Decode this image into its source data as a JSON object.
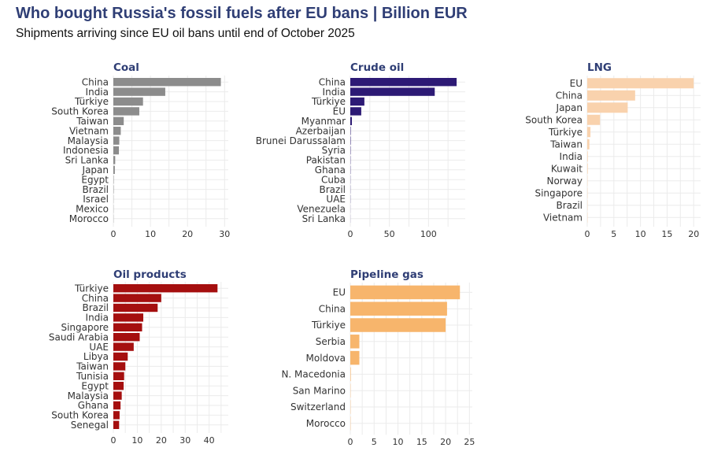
{
  "header": {
    "title": "Who bought Russia's fossil fuels after EU bans | Billion EUR",
    "subtitle": "Shipments arriving since EU oil bans until end of October 2025"
  },
  "colors": {
    "title": "#2f3e75",
    "grid": "#ebebeb",
    "text": "#333333"
  },
  "chart_data": [
    {
      "type": "bar",
      "orientation": "horizontal",
      "title": "Coal",
      "color": "#8c8c8c",
      "categories": [
        "China",
        "India",
        "Türkiye",
        "South Korea",
        "Taiwan",
        "Vietnam",
        "Malaysia",
        "Indonesia",
        "Sri Lanka",
        "Japan",
        "Egypt",
        "Brazil",
        "Israel",
        "Mexico",
        "Morocco"
      ],
      "values": [
        29,
        14,
        8,
        7,
        2.8,
        2.0,
        1.6,
        1.5,
        0.5,
        0.4,
        0.1,
        0.1,
        0.05,
        0.05,
        0.05
      ],
      "xlim": [
        0,
        31
      ],
      "ticks": [
        0,
        10,
        20,
        30
      ]
    },
    {
      "type": "bar",
      "orientation": "horizontal",
      "title": "Crude oil",
      "color": "#2d1a75",
      "categories": [
        "China",
        "India",
        "Türkiye",
        "EU",
        "Myanmar",
        "Azerbaijan",
        "Brunei Darussalam",
        "Syria",
        "Pakistan",
        "Ghana",
        "Cuba",
        "Brazil",
        "UAE",
        "Venezuela",
        "Sri Lanka"
      ],
      "values": [
        136,
        108,
        18,
        14,
        2,
        0.5,
        0.5,
        0.4,
        0.3,
        0.3,
        0.2,
        0.2,
        0.2,
        0.1,
        0.1
      ],
      "xlim": [
        0,
        147
      ],
      "ticks": [
        0,
        50,
        100
      ]
    },
    {
      "type": "bar",
      "orientation": "horizontal",
      "title": "LNG",
      "color": "#f9d2ad",
      "categories": [
        "EU",
        "China",
        "Japan",
        "South Korea",
        "Türkiye",
        "Taiwan",
        "India",
        "Kuwait",
        "Norway",
        "Singapore",
        "Brazil",
        "Vietnam"
      ],
      "values": [
        20,
        9,
        7.6,
        2.4,
        0.6,
        0.4,
        0.1,
        0.1,
        0.05,
        0.05,
        0.05,
        0.05
      ],
      "xlim": [
        0,
        21.3
      ],
      "ticks": [
        0,
        5,
        10,
        15,
        20
      ]
    },
    {
      "type": "bar",
      "orientation": "horizontal",
      "title": "Oil products",
      "color": "#a50f0f",
      "categories": [
        "Türkiye",
        "China",
        "Brazil",
        "India",
        "Singapore",
        "Saudi Arabia",
        "UAE",
        "Libya",
        "Taiwan",
        "Tunisia",
        "Egypt",
        "Malaysia",
        "Ghana",
        "South Korea",
        "Senegal"
      ],
      "values": [
        43.5,
        20,
        18.5,
        12.5,
        12,
        11,
        8.5,
        6,
        5,
        4.5,
        4.3,
        3.5,
        3,
        2.6,
        2.4
      ],
      "xlim": [
        0,
        48
      ],
      "ticks": [
        0,
        10,
        20,
        30,
        40
      ]
    },
    {
      "type": "bar",
      "orientation": "horizontal",
      "title": "Pipeline gas",
      "color": "#f7b56c",
      "categories": [
        "EU",
        "China",
        "Türkiye",
        "Serbia",
        "Moldova",
        "N. Macedonia",
        "San Marino",
        "Switzerland",
        "Morocco"
      ],
      "values": [
        23,
        20.3,
        20,
        1.9,
        1.9,
        0.1,
        0.05,
        0.05,
        0.05
      ],
      "xlim": [
        0,
        25.6
      ],
      "ticks": [
        0,
        5,
        10,
        15,
        20,
        25
      ]
    }
  ]
}
